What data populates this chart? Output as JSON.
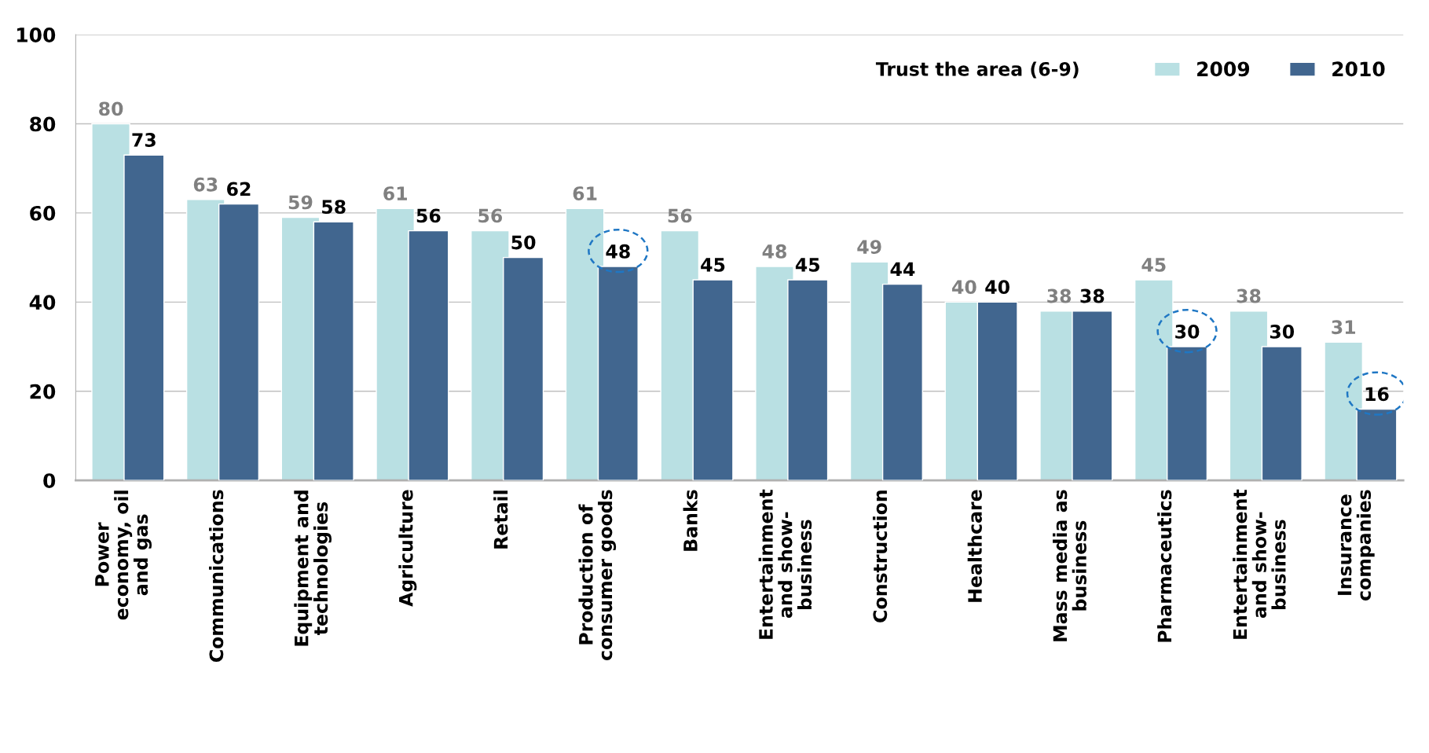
{
  "chart_data": {
    "type": "bar",
    "legend_title": "Trust the area (6-9)",
    "categories": [
      "Power\neconomy, oil\nand gas",
      "Communications",
      "Equipment and\ntechnologies",
      "Agriculture",
      "Retail",
      "Production of\nconsumer goods",
      "Banks",
      "Entertainment\nand show-\nbusiness",
      "Construction",
      "Healthcare",
      "Mass media as\nbusiness",
      "Pharmaceutics",
      "Entertainment\nand show-\nbusiness",
      "Insurance\ncompanies"
    ],
    "series": [
      {
        "name": "2009",
        "color": "#b9e0e3",
        "values": [
          80,
          63,
          59,
          61,
          56,
          61,
          56,
          48,
          49,
          40,
          38,
          45,
          38,
          31
        ]
      },
      {
        "name": "2010",
        "color": "#41668f",
        "values": [
          73,
          62,
          58,
          56,
          50,
          48,
          45,
          45,
          44,
          40,
          38,
          30,
          30,
          16
        ]
      }
    ],
    "ylim": [
      0,
      100
    ],
    "yticks": [
      0,
      20,
      40,
      60,
      80,
      100
    ],
    "grid": "y",
    "legend": "top right",
    "data_labels": true
  }
}
